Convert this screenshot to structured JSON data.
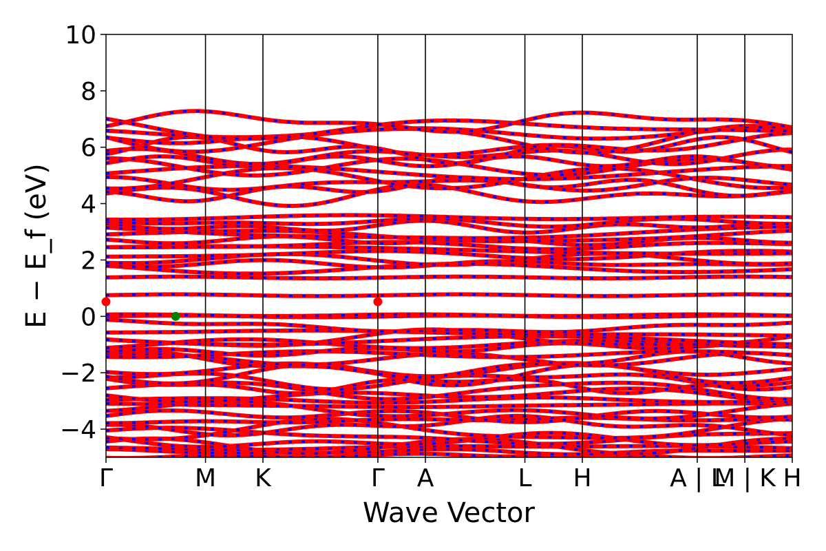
{
  "chart_data": {
    "type": "line",
    "title": "",
    "xlabel": "Wave Vector",
    "ylabel": "E − E_f (eV)",
    "ylim": [
      -5,
      10
    ],
    "y_ticks": [
      -4,
      -2,
      0,
      2,
      4,
      6,
      8,
      10
    ],
    "y_tick_labels": [
      "−4",
      "−2",
      "0",
      "2",
      "4",
      "6",
      "8",
      "10"
    ],
    "x_ticks": [
      0,
      1,
      1.577,
      2.732,
      3.21,
      4.21,
      4.787,
      5.942,
      6.42,
      6.897
    ],
    "x_tick_labels": [
      "Γ",
      "M",
      "K",
      "Γ",
      "A",
      "L",
      "H",
      "A | L",
      "M | K",
      "H"
    ],
    "xlim": [
      0,
      6.897
    ],
    "grid": false,
    "colors": {
      "spin_up": "#ff0000",
      "spin_down": "#0000ff",
      "frame": "#000000",
      "vbm_marker": "#008000",
      "cbm_marker": "#ff0000"
    },
    "markers": [
      {
        "name": "VBM",
        "x": 0.7,
        "y": 0.0,
        "color": "#008000"
      },
      {
        "name": "CBM",
        "x": 0.0,
        "y": 0.52,
        "color": "#ff0000"
      },
      {
        "name": "CBM",
        "x": 2.732,
        "y": 0.52,
        "color": "#ff0000"
      }
    ],
    "flat_bands": [
      {
        "y": 0.0,
        "repeat": 2
      },
      {
        "y": 0.75,
        "repeat": 1
      },
      {
        "y": 1.38,
        "repeat": 1
      }
    ],
    "band_groups": [
      {
        "name": "deep valence",
        "center": -4.8,
        "spread": 0.15,
        "count": 3,
        "amp": 0.1
      },
      {
        "name": "valence",
        "center": -2.7,
        "spread": 1.9,
        "count": 22,
        "amp": 0.35
      },
      {
        "name": "upper valence",
        "center": -0.6,
        "spread": 0.25,
        "count": 3,
        "amp": 0.25
      },
      {
        "name": "mid conduction",
        "center": 2.6,
        "spread": 0.9,
        "count": 12,
        "amp": 0.25
      },
      {
        "name": "upper conduction",
        "center": 5.6,
        "spread": 1.3,
        "count": 14,
        "amp": 0.45
      }
    ]
  }
}
